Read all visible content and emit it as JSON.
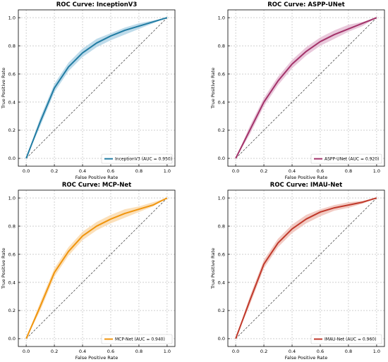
{
  "figure": {
    "grid": true,
    "chance_line": "dashed diagonal"
  },
  "chart_data": [
    {
      "type": "line",
      "title": "ROC Curve: InceptionV3",
      "xlabel": "False Positive Rate",
      "ylabel": "True Positive Rate",
      "xlim": [
        0,
        1
      ],
      "ylim": [
        0,
        1
      ],
      "xticks": [
        "0.0",
        "0.2",
        "0.4",
        "0.6",
        "0.8",
        "1.0"
      ],
      "yticks": [
        "0.0",
        "0.2",
        "0.4",
        "0.6",
        "0.8",
        "1.0"
      ],
      "legend_position": "lower-right",
      "color": "#217ca3",
      "band_color": "#a8cfe3",
      "series": [
        {
          "name": "InceptionV3 (AUC = 0.950)",
          "x": [
            0,
            0.1,
            0.2,
            0.3,
            0.4,
            0.5,
            0.6,
            0.7,
            0.8,
            0.9,
            1.0
          ],
          "y": [
            0,
            0.26,
            0.5,
            0.65,
            0.75,
            0.82,
            0.87,
            0.91,
            0.94,
            0.97,
            1.0
          ],
          "y_lower": [
            0,
            0.23,
            0.47,
            0.62,
            0.72,
            0.79,
            0.84,
            0.88,
            0.92,
            0.96,
            1.0
          ],
          "y_upper": [
            0,
            0.29,
            0.53,
            0.68,
            0.78,
            0.85,
            0.89,
            0.93,
            0.96,
            0.98,
            1.0
          ]
        }
      ]
    },
    {
      "type": "line",
      "title": "ROC Curve: ASPP-UNet",
      "xlabel": "False Positive Rate",
      "ylabel": "True Positive Rate",
      "xlim": [
        0,
        1
      ],
      "ylim": [
        0,
        1
      ],
      "xticks": [
        "0.0",
        "0.2",
        "0.4",
        "0.6",
        "0.8",
        "1.0"
      ],
      "yticks": [
        "0.0",
        "0.2",
        "0.4",
        "0.6",
        "0.8",
        "1.0"
      ],
      "legend_position": "lower-right",
      "color": "#a3336a",
      "band_color": "#e2b6cf",
      "series": [
        {
          "name": "ASPP-UNet (AUC = 0.920)",
          "x": [
            0,
            0.1,
            0.2,
            0.3,
            0.4,
            0.5,
            0.6,
            0.7,
            0.8,
            0.9,
            1.0
          ],
          "y": [
            0,
            0.2,
            0.4,
            0.55,
            0.67,
            0.76,
            0.83,
            0.88,
            0.92,
            0.96,
            1.0
          ],
          "y_lower": [
            0,
            0.17,
            0.37,
            0.52,
            0.64,
            0.73,
            0.8,
            0.85,
            0.9,
            0.94,
            1.0
          ],
          "y_upper": [
            0,
            0.23,
            0.43,
            0.58,
            0.7,
            0.79,
            0.86,
            0.91,
            0.95,
            0.97,
            1.0
          ]
        }
      ]
    },
    {
      "type": "line",
      "title": "ROC Curve: MCP-Net",
      "xlabel": "False Positive Rate",
      "ylabel": "True Positive Rate",
      "xlim": [
        0,
        1
      ],
      "ylim": [
        0,
        1
      ],
      "xticks": [
        "0.0",
        "0.2",
        "0.4",
        "0.6",
        "0.8",
        "1.0"
      ],
      "yticks": [
        "0.0",
        "0.2",
        "0.4",
        "0.6",
        "0.8",
        "1.0"
      ],
      "legend_position": "lower-right",
      "color": "#f0950e",
      "band_color": "#f9d6a3",
      "series": [
        {
          "name": "MCP-Net (AUC = 0.940)",
          "x": [
            0,
            0.1,
            0.2,
            0.3,
            0.4,
            0.5,
            0.6,
            0.7,
            0.8,
            0.9,
            1.0
          ],
          "y": [
            0,
            0.23,
            0.47,
            0.62,
            0.73,
            0.8,
            0.85,
            0.89,
            0.92,
            0.95,
            1.0
          ],
          "y_lower": [
            0,
            0.2,
            0.44,
            0.59,
            0.7,
            0.77,
            0.82,
            0.86,
            0.9,
            0.94,
            1.0
          ],
          "y_upper": [
            0,
            0.26,
            0.5,
            0.65,
            0.76,
            0.83,
            0.88,
            0.92,
            0.94,
            0.97,
            1.0
          ]
        }
      ]
    },
    {
      "type": "line",
      "title": "ROC Curve: IMAU-Net",
      "xlabel": "False Positive Rate",
      "ylabel": "True Positive Rate",
      "xlim": [
        0,
        1
      ],
      "ylim": [
        0,
        1
      ],
      "xticks": [
        "0.0",
        "0.2",
        "0.4",
        "0.6",
        "0.8",
        "1.0"
      ],
      "yticks": [
        "0.0",
        "0.2",
        "0.4",
        "0.6",
        "0.8",
        "1.0"
      ],
      "legend_position": "lower-right",
      "color": "#c0392b",
      "band_color": "#eeb9b0",
      "series": [
        {
          "name": "IMAU-Net (AUC = 0.960)",
          "x": [
            0,
            0.1,
            0.2,
            0.3,
            0.4,
            0.5,
            0.6,
            0.7,
            0.8,
            0.9,
            1.0
          ],
          "y": [
            0,
            0.27,
            0.53,
            0.68,
            0.78,
            0.85,
            0.9,
            0.93,
            0.95,
            0.97,
            1.0
          ],
          "y_lower": [
            0,
            0.24,
            0.5,
            0.65,
            0.75,
            0.82,
            0.87,
            0.91,
            0.93,
            0.96,
            1.0
          ],
          "y_upper": [
            0,
            0.3,
            0.56,
            0.71,
            0.81,
            0.88,
            0.92,
            0.95,
            0.97,
            0.98,
            1.0
          ]
        }
      ]
    }
  ]
}
